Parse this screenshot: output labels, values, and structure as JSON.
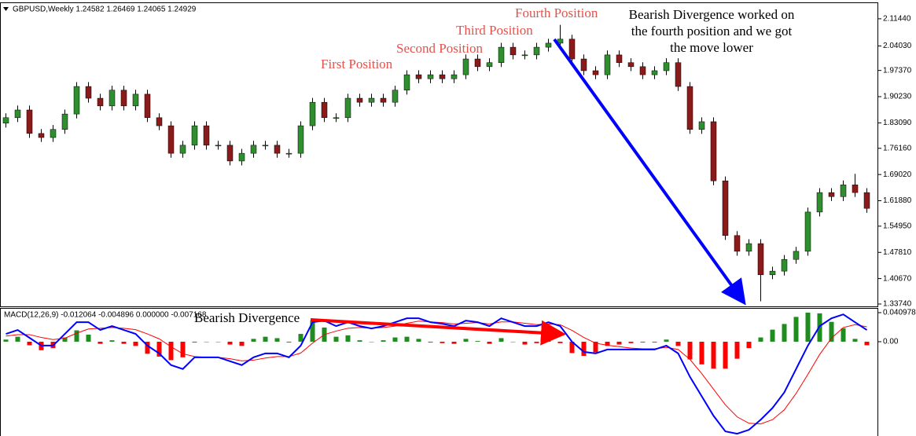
{
  "chart_data": [
    {
      "type": "candlestick",
      "title": "GBPUSD,Weekly  1.24582 1.26469 1.24065 1.24929",
      "open": [
        1.83,
        1.845,
        1.866,
        1.802,
        1.791,
        1.813,
        1.855,
        1.93,
        1.898,
        1.877,
        1.92,
        1.877,
        1.909,
        1.845,
        1.823,
        1.748,
        1.77,
        1.823,
        1.77,
        1.77,
        1.727,
        1.748,
        1.77,
        1.77,
        1.748,
        1.748,
        1.823,
        1.887,
        1.845,
        1.845,
        1.898,
        1.887,
        1.898,
        1.887,
        1.92,
        1.962,
        1.951,
        1.962,
        1.951,
        1.962,
        2.005,
        1.984,
        1.995,
        2.037,
        2.016,
        2.016,
        2.037,
        2.048,
        2.059,
        2.005,
        1.973,
        1.962,
        2.016,
        1.995,
        1.984,
        1.962,
        1.973,
        1.995,
        1.93,
        1.813,
        1.834,
        1.673,
        1.524,
        1.481,
        1.502,
        1.417,
        1.427,
        1.459,
        1.481,
        1.588,
        1.641,
        1.63,
        1.662,
        1.641
      ],
      "high": [
        1.857,
        1.878,
        1.878,
        1.814,
        1.825,
        1.867,
        1.942,
        1.942,
        1.91,
        1.932,
        1.932,
        1.921,
        1.921,
        1.857,
        1.835,
        1.782,
        1.835,
        1.835,
        1.782,
        1.782,
        1.76,
        1.782,
        1.782,
        1.782,
        1.76,
        1.835,
        1.899,
        1.899,
        1.857,
        1.91,
        1.91,
        1.91,
        1.91,
        1.932,
        1.974,
        1.974,
        1.974,
        1.974,
        1.974,
        2.017,
        2.017,
        2.007,
        2.049,
        2.049,
        2.028,
        2.049,
        2.06,
        2.098,
        2.071,
        2.017,
        1.985,
        2.028,
        2.028,
        2.007,
        1.996,
        1.985,
        2.007,
        2.007,
        1.942,
        1.846,
        1.846,
        1.685,
        1.536,
        1.514,
        1.514,
        1.439,
        1.471,
        1.493,
        1.6,
        1.653,
        1.653,
        1.674,
        1.692,
        1.653
      ],
      "low": [
        1.818,
        1.833,
        1.79,
        1.779,
        1.779,
        1.801,
        1.843,
        1.886,
        1.865,
        1.865,
        1.865,
        1.865,
        1.833,
        1.811,
        1.736,
        1.736,
        1.758,
        1.758,
        1.758,
        1.715,
        1.715,
        1.736,
        1.758,
        1.736,
        1.736,
        1.736,
        1.811,
        1.833,
        1.833,
        1.833,
        1.875,
        1.875,
        1.875,
        1.875,
        1.908,
        1.939,
        1.939,
        1.939,
        1.939,
        1.95,
        1.972,
        1.972,
        1.983,
        2.004,
        2.004,
        2.004,
        2.025,
        2.036,
        1.993,
        1.961,
        1.95,
        1.95,
        1.983,
        1.972,
        1.95,
        1.95,
        1.961,
        1.918,
        1.801,
        1.801,
        1.661,
        1.512,
        1.469,
        1.469,
        1.345,
        1.405,
        1.415,
        1.447,
        1.469,
        1.576,
        1.618,
        1.618,
        1.629,
        1.586
      ],
      "close": [
        1.845,
        1.866,
        1.802,
        1.791,
        1.813,
        1.855,
        1.93,
        1.898,
        1.877,
        1.92,
        1.877,
        1.909,
        1.845,
        1.823,
        1.748,
        1.77,
        1.823,
        1.77,
        1.77,
        1.727,
        1.748,
        1.77,
        1.77,
        1.748,
        1.748,
        1.823,
        1.887,
        1.845,
        1.845,
        1.898,
        1.887,
        1.898,
        1.887,
        1.92,
        1.962,
        1.951,
        1.962,
        1.951,
        1.962,
        2.005,
        1.984,
        1.995,
        2.037,
        2.016,
        2.016,
        2.037,
        2.048,
        2.059,
        2.005,
        1.973,
        1.962,
        2.016,
        1.995,
        1.984,
        1.962,
        1.973,
        1.995,
        1.93,
        1.813,
        1.834,
        1.673,
        1.524,
        1.481,
        1.502,
        1.417,
        1.427,
        1.459,
        1.481,
        1.588,
        1.641,
        1.63,
        1.662,
        1.641,
        1.598
      ],
      "up_color": "#2f8f2f",
      "down_color": "#8b1a1a",
      "wick_color": "#000000",
      "ylim": [
        1.331,
        2.157
      ],
      "yticks": [
        {
          "value": 2.1144,
          "label": "2.11440"
        },
        {
          "value": 2.0403,
          "label": "2.04030"
        },
        {
          "value": 1.9737,
          "label": "1.97370"
        },
        {
          "value": 1.9023,
          "label": "1.90230"
        },
        {
          "value": 1.8309,
          "label": "1.83090"
        },
        {
          "value": 1.7616,
          "label": "1.76160"
        },
        {
          "value": 1.6902,
          "label": "1.69020"
        },
        {
          "value": 1.6188,
          "label": "1.61880"
        },
        {
          "value": 1.5495,
          "label": "1.54950"
        },
        {
          "value": 1.4781,
          "label": "1.47810"
        },
        {
          "value": 1.4067,
          "label": "1.40670"
        },
        {
          "value": 1.3374,
          "label": "1.33740"
        }
      ],
      "annotations": [
        "First Position",
        "Second Position",
        "Third Position",
        "Fourth Position"
      ],
      "annotation_color": "#e8504a",
      "note": [
        "Bearish Divergence worked on",
        "the fourth position and we got",
        "the move lower"
      ]
    },
    {
      "type": "macd",
      "title": "MACD(12,26,9) -0.012064 -0.004896 0.000000 -0.007168",
      "histogram": [
        0.003,
        0.007,
        -0.005,
        -0.012,
        -0.009,
        0.006,
        0.016,
        0.01,
        -0.003,
        0.002,
        -0.003,
        -0.006,
        -0.017,
        -0.021,
        -0.026,
        -0.022,
        -0.001,
        0.0,
        0.0,
        -0.004,
        -0.006,
        0.004,
        0.007,
        0.005,
        -0.001,
        0.011,
        0.03,
        0.02,
        0.007,
        0.009,
        0.002,
        0.0,
        0.002,
        0.006,
        0.007,
        0.004,
        -0.001,
        -0.002,
        -0.003,
        0.004,
        0.001,
        -0.003,
        0.005,
        0.0,
        -0.004,
        -0.002,
        0.003,
        -0.002,
        -0.016,
        -0.02,
        -0.015,
        -0.006,
        -0.004,
        -0.002,
        -0.001,
        -0.001,
        0.003,
        -0.006,
        -0.025,
        -0.032,
        -0.038,
        -0.038,
        -0.024,
        -0.009,
        0.006,
        0.017,
        0.025,
        0.035,
        0.041,
        0.04,
        0.028,
        0.019,
        0.004,
        -0.005
      ],
      "macd": [
        0.011,
        0.0165,
        0.0055,
        -0.0055,
        -0.0055,
        0.011,
        0.0275,
        0.0275,
        0.0165,
        0.022,
        0.0165,
        0.011,
        -0.0055,
        -0.0165,
        -0.033,
        -0.0385,
        -0.022,
        -0.022,
        -0.022,
        -0.0275,
        -0.033,
        -0.022,
        -0.0165,
        -0.0165,
        -0.022,
        -0.0055,
        0.0275,
        0.0297,
        0.022,
        0.0275,
        0.022,
        0.0187,
        0.022,
        0.0275,
        0.033,
        0.033,
        0.0275,
        0.0253,
        0.022,
        0.0297,
        0.0275,
        0.022,
        0.033,
        0.0275,
        0.022,
        0.022,
        0.0275,
        0.022,
        0,
        -0.0143,
        -0.0165,
        -0.011,
        -0.011,
        -0.011,
        -0.011,
        -0.011,
        -0.0055,
        -0.0165,
        -0.0495,
        -0.077,
        -0.1045,
        -0.1265,
        -0.1298,
        -0.1243,
        -0.11,
        -0.0935,
        -0.0715,
        -0.0385,
        -0.0055,
        0.022,
        0.033,
        0.0385,
        0.0275,
        0.0165
      ],
      "signal": [
        0.008,
        0.01,
        0.01,
        0.006,
        0.003,
        0.005,
        0.012,
        0.018,
        0.019,
        0.02,
        0.019,
        0.017,
        0.011,
        0.004,
        -0.007,
        -0.017,
        -0.021,
        -0.022,
        -0.022,
        -0.024,
        -0.027,
        -0.026,
        -0.023,
        -0.021,
        -0.021,
        -0.016,
        -0.002,
        0.01,
        0.015,
        0.019,
        0.02,
        0.019,
        0.02,
        0.022,
        0.026,
        0.029,
        0.028,
        0.027,
        0.025,
        0.026,
        0.027,
        0.025,
        0.028,
        0.028,
        0.026,
        0.024,
        0.025,
        0.024,
        0.016,
        0.006,
        -0.002,
        -0.005,
        -0.007,
        -0.009,
        -0.01,
        -0.01,
        -0.008,
        -0.011,
        -0.025,
        -0.045,
        -0.067,
        -0.089,
        -0.106,
        -0.115,
        -0.116,
        -0.11,
        -0.096,
        -0.073,
        -0.046,
        -0.018,
        0.005,
        0.02,
        0.024,
        0.021
      ],
      "macd_color": "#0000ff",
      "signal_color": "#ff0000",
      "up_color": "#1e8c1e",
      "down_color": "#ff0000",
      "ylim": [
        -0.133,
        0.0465
      ],
      "yticks": [
        0.040978,
        {
          "value": 0,
          "label": "0.00"
        }
      ],
      "annotation": "Bearish Divergence"
    }
  ]
}
